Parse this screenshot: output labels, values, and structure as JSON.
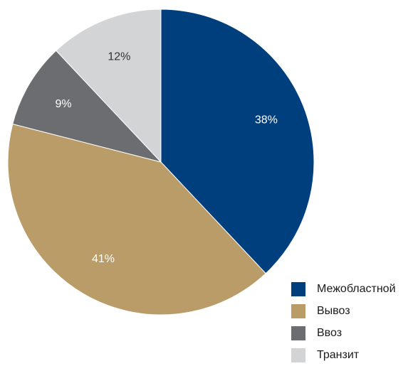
{
  "chart_data": {
    "type": "pie",
    "slices": [
      {
        "label": "Межобластной",
        "value": 38,
        "display": "38%",
        "color": "#003f7d",
        "text_color": "#ffffff"
      },
      {
        "label": "Вывоз",
        "value": 41,
        "display": "41%",
        "color": "#b99c68",
        "text_color": "#ffffff"
      },
      {
        "label": "Ввоз",
        "value": 9,
        "display": "9%",
        "color": "#6c6d70",
        "text_color": "#ffffff"
      },
      {
        "label": "Транзит",
        "value": 12,
        "display": "12%",
        "color": "#d3d4d6",
        "text_color": "#333333"
      }
    ],
    "start_angle": "12 o'clock",
    "direction": "clockwise",
    "legend_position": "bottom-right"
  }
}
